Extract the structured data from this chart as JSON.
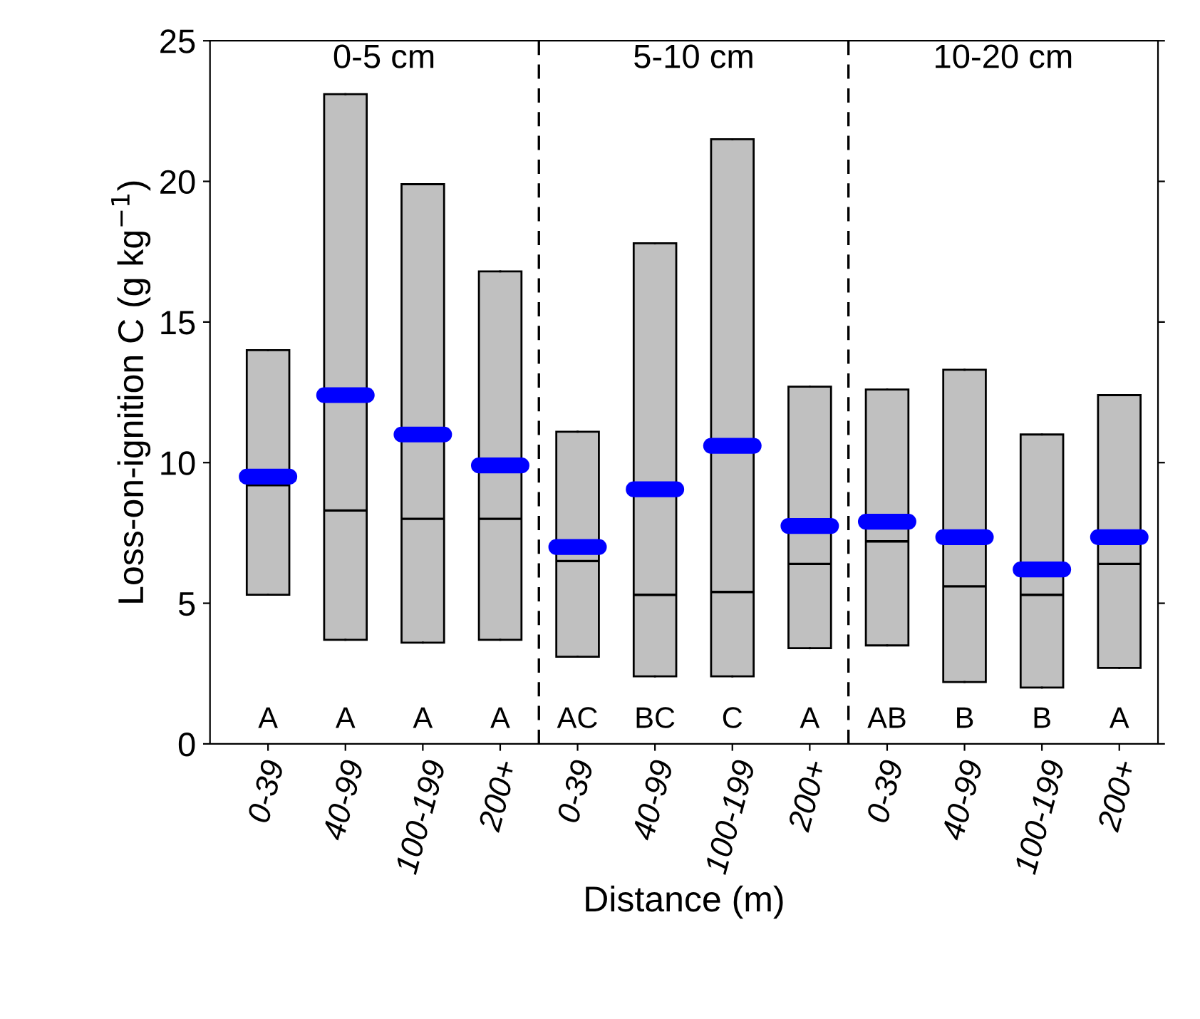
{
  "chart_data": {
    "type": "box",
    "xlabel": "Distance (m)",
    "ylabel": "Loss-on-ignition C (g kg$^{−1}$)",
    "categories": [
      "0-39",
      "40-99",
      "100-199",
      "200+",
      "0-39",
      "40-99",
      "100-199",
      "200+",
      "0-39",
      "40-99",
      "100-199",
      "200+"
    ],
    "color": "#c0c0c0",
    "boxes": [
      {
        "low": 5.3,
        "q1": 5.3,
        "median": 9.2,
        "q3": 14.0,
        "high": 14.0,
        "mean": 9.5
      },
      {
        "low": 3.7,
        "q1": 3.7,
        "median": 8.3,
        "q3": 23.1,
        "high": 23.1,
        "mean": 12.4
      },
      {
        "low": 3.6,
        "q1": 3.6,
        "median": 8.0,
        "q3": 19.9,
        "high": 19.9,
        "mean": 11.0
      },
      {
        "low": 3.7,
        "q1": 3.7,
        "median": 8.0,
        "q3": 16.8,
        "high": 16.8,
        "mean": 9.9
      },
      {
        "low": 3.1,
        "q1": 3.1,
        "median": 6.5,
        "q3": 11.1,
        "high": 11.1,
        "mean": 7.0
      },
      {
        "low": 2.4,
        "q1": 2.4,
        "median": 5.3,
        "q3": 17.8,
        "high": 17.8,
        "mean": 9.05
      },
      {
        "low": 2.4,
        "q1": 2.4,
        "median": 5.4,
        "q3": 21.5,
        "high": 21.5,
        "mean": 10.6
      },
      {
        "low": 3.4,
        "q1": 3.4,
        "median": 6.4,
        "q3": 12.7,
        "high": 12.7,
        "mean": 7.75
      },
      {
        "low": 3.5,
        "q1": 3.5,
        "median": 7.2,
        "q3": 12.6,
        "high": 12.6,
        "mean": 7.9
      },
      {
        "low": 2.2,
        "q1": 2.2,
        "median": 5.6,
        "q3": 13.3,
        "high": 13.3,
        "mean": 7.35
      },
      {
        "low": 2.0,
        "q1": 2.0,
        "median": 5.3,
        "q3": 11.0,
        "high": 11.0,
        "mean": 6.2
      },
      {
        "low": 2.7,
        "q1": 2.7,
        "median": 6.4,
        "q3": 12.4,
        "high": 12.4,
        "mean": 7.35
      }
    ],
    "ylim": [
      0,
      25
    ],
    "yticks": [
      0,
      5,
      10,
      15,
      20,
      25
    ],
    "grid": false,
    "legend": false,
    "annotations": [
      "0-5 cm",
      "5-10 cm",
      "10-20 cm",
      "A",
      "A",
      "A",
      "A",
      "AC",
      "BC",
      "C",
      "A",
      "AB",
      "B",
      "B",
      "A"
    ]
  }
}
